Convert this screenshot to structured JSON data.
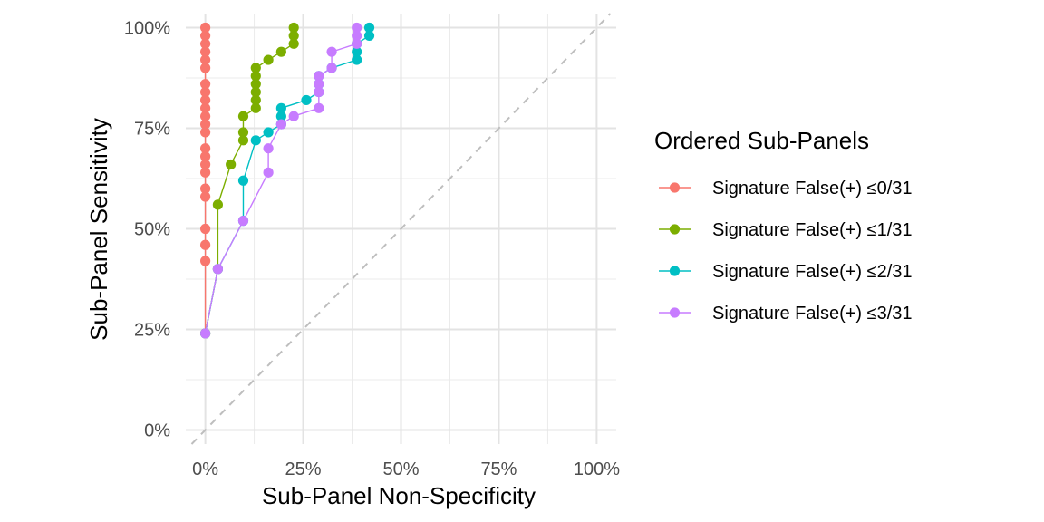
{
  "chart_data": {
    "type": "line",
    "xlabel": "Sub-Panel Non-Specificity",
    "ylabel": "Sub-Panel Sensitivity",
    "xlim": [
      -0.05,
      1.05
    ],
    "ylim": [
      -0.035,
      1.035
    ],
    "x_ticks": [
      0,
      0.25,
      0.5,
      0.75,
      1.0
    ],
    "y_ticks": [
      0,
      0.25,
      0.5,
      0.75,
      1.0
    ],
    "x_tick_labels": [
      "0%",
      "25%",
      "50%",
      "75%",
      "100%"
    ],
    "y_tick_labels": [
      "0%",
      "25%",
      "50%",
      "75%",
      "100%"
    ],
    "grid": true,
    "reference_line": {
      "style": "dashed",
      "color": "#bebebe",
      "from": [
        0,
        0
      ],
      "to": [
        1,
        1
      ]
    },
    "legend": {
      "title": "Ordered Sub-Panels",
      "position": "right"
    },
    "series": [
      {
        "name": "Signature False(+) ≤0/31",
        "color": "#F8766D",
        "points": [
          [
            0,
            0.24
          ],
          [
            0,
            0.42
          ],
          [
            0,
            0.46
          ],
          [
            0,
            0.5
          ],
          [
            0,
            0.58
          ],
          [
            0,
            0.6
          ],
          [
            0,
            0.64
          ],
          [
            0,
            0.66
          ],
          [
            0,
            0.68
          ],
          [
            0,
            0.7
          ],
          [
            0,
            0.74
          ],
          [
            0,
            0.76
          ],
          [
            0,
            0.78
          ],
          [
            0,
            0.8
          ],
          [
            0,
            0.82
          ],
          [
            0,
            0.84
          ],
          [
            0,
            0.86
          ],
          [
            0,
            0.9
          ],
          [
            0,
            0.92
          ],
          [
            0,
            0.94
          ],
          [
            0,
            0.96
          ],
          [
            0,
            0.98
          ],
          [
            0,
            1.0
          ]
        ]
      },
      {
        "name": "Signature False(+) ≤1/31",
        "color": "#7CAE00",
        "points": [
          [
            0,
            0.24
          ],
          [
            0.032,
            0.4
          ],
          [
            0.032,
            0.56
          ],
          [
            0.065,
            0.66
          ],
          [
            0.097,
            0.72
          ],
          [
            0.097,
            0.74
          ],
          [
            0.097,
            0.78
          ],
          [
            0.129,
            0.8
          ],
          [
            0.129,
            0.82
          ],
          [
            0.129,
            0.84
          ],
          [
            0.129,
            0.86
          ],
          [
            0.129,
            0.88
          ],
          [
            0.129,
            0.9
          ],
          [
            0.161,
            0.92
          ],
          [
            0.194,
            0.94
          ],
          [
            0.226,
            0.96
          ],
          [
            0.226,
            0.98
          ],
          [
            0.226,
            1.0
          ]
        ]
      },
      {
        "name": "Signature False(+) ≤2/31",
        "color": "#00BFC4",
        "points": [
          [
            0,
            0.24
          ],
          [
            0.032,
            0.4
          ],
          [
            0.097,
            0.52
          ],
          [
            0.097,
            0.62
          ],
          [
            0.129,
            0.72
          ],
          [
            0.161,
            0.74
          ],
          [
            0.194,
            0.76
          ],
          [
            0.194,
            0.78
          ],
          [
            0.194,
            0.8
          ],
          [
            0.258,
            0.82
          ],
          [
            0.29,
            0.84
          ],
          [
            0.29,
            0.86
          ],
          [
            0.29,
            0.88
          ],
          [
            0.323,
            0.9
          ],
          [
            0.387,
            0.92
          ],
          [
            0.387,
            0.94
          ],
          [
            0.387,
            0.96
          ],
          [
            0.419,
            0.98
          ],
          [
            0.419,
            1.0
          ]
        ]
      },
      {
        "name": "Signature False(+) ≤3/31",
        "color": "#C77CFF",
        "points": [
          [
            0,
            0.24
          ],
          [
            0.032,
            0.4
          ],
          [
            0.097,
            0.52
          ],
          [
            0.161,
            0.64
          ],
          [
            0.161,
            0.7
          ],
          [
            0.194,
            0.76
          ],
          [
            0.226,
            0.78
          ],
          [
            0.29,
            0.8
          ],
          [
            0.29,
            0.84
          ],
          [
            0.29,
            0.86
          ],
          [
            0.29,
            0.88
          ],
          [
            0.323,
            0.9
          ],
          [
            0.323,
            0.94
          ],
          [
            0.387,
            0.96
          ],
          [
            0.387,
            0.98
          ],
          [
            0.387,
            1.0
          ]
        ]
      }
    ]
  }
}
